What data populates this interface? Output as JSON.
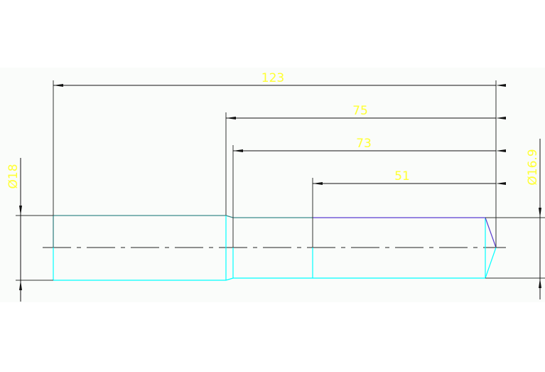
{
  "drawing": {
    "dimensions": {
      "overall_length": "123",
      "length_75": "75",
      "length_73": "73",
      "length_51": "51",
      "diameter_left": "Ø18",
      "diameter_right": "Ø16.9"
    },
    "colors": {
      "background": "#fafcfa",
      "dimension_lines": "#1a1a1a",
      "dimension_text": "#ffff33",
      "outline_cyan": "#00ffff",
      "outline_teal": "#3c8c8c",
      "outline_purple": "#5a3cd0"
    }
  }
}
